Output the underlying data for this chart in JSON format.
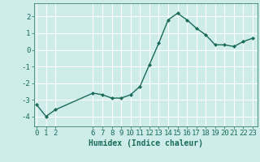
{
  "x": [
    0,
    1,
    2,
    6,
    7,
    8,
    9,
    10,
    11,
    12,
    13,
    14,
    15,
    16,
    17,
    18,
    19,
    20,
    21,
    22,
    23
  ],
  "y": [
    -3.3,
    -4.0,
    -3.6,
    -2.6,
    -2.7,
    -2.9,
    -2.9,
    -2.7,
    -2.2,
    -0.9,
    0.4,
    1.8,
    2.2,
    1.8,
    1.3,
    0.9,
    0.3,
    0.3,
    0.2,
    0.5,
    0.7
  ],
  "xticks": [
    0,
    1,
    2,
    6,
    7,
    8,
    9,
    10,
    11,
    12,
    13,
    14,
    15,
    16,
    17,
    18,
    19,
    20,
    21,
    22,
    23
  ],
  "yticks": [
    -4,
    -3,
    -2,
    -1,
    0,
    1,
    2
  ],
  "ylim": [
    -4.6,
    2.8
  ],
  "xlim": [
    -0.3,
    23.5
  ],
  "xlabel": "Humidex (Indice chaleur)",
  "line_color": "#1a6b5a",
  "marker": "D",
  "marker_size": 2.0,
  "background_color": "#ceecea",
  "grid_color": "#ffffff",
  "grid_linewidth": 0.8,
  "text_color": "#1a6b5a",
  "label_fontsize": 7,
  "tick_fontsize": 6.5,
  "line_width": 1.0
}
